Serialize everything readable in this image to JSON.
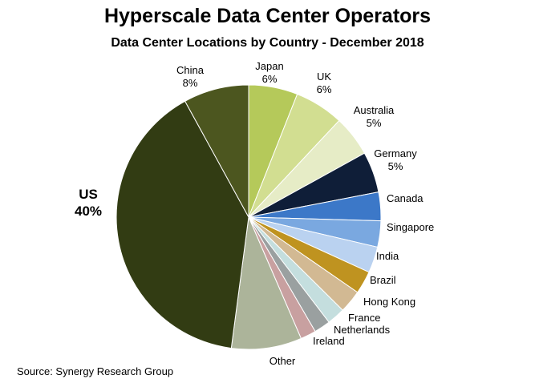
{
  "title": "Hyperscale Data Center Operators",
  "subtitle": "Data Center Locations by Country - December 2018",
  "source": "Source: Synergy Research Group",
  "chart_data": {
    "type": "pie",
    "title": "Hyperscale Data Center Operators",
    "subtitle": "Data Center Locations by Country - December 2018",
    "start_angle_deg": -90,
    "direction": "clockwise",
    "slices": [
      {
        "name": "Japan",
        "value": 6,
        "pct_label": "6%",
        "color": "#b5c95a"
      },
      {
        "name": "UK",
        "value": 6,
        "pct_label": "6%",
        "color": "#d2de91"
      },
      {
        "name": "Australia",
        "value": 5,
        "pct_label": "5%",
        "color": "#e6ecc6"
      },
      {
        "name": "Germany",
        "value": 5,
        "pct_label": "5%",
        "color": "#0f1e38"
      },
      {
        "name": "Canada",
        "value": 3.5,
        "pct_label": "",
        "color": "#3c78c8"
      },
      {
        "name": "Singapore",
        "value": 3.2,
        "pct_label": "",
        "color": "#7aa8e0"
      },
      {
        "name": "India",
        "value": 3.2,
        "pct_label": "",
        "color": "#bad2f0"
      },
      {
        "name": "Brazil",
        "value": 2.8,
        "pct_label": "",
        "color": "#bf9320"
      },
      {
        "name": "Hong Kong",
        "value": 2.8,
        "pct_label": "",
        "color": "#d2b993"
      },
      {
        "name": "France",
        "value": 2.2,
        "pct_label": "",
        "color": "#c4dede"
      },
      {
        "name": "Netherlands",
        "value": 2,
        "pct_label": "",
        "color": "#9aa0a0"
      },
      {
        "name": "Ireland",
        "value": 1.9,
        "pct_label": "",
        "color": "#c8a0a0"
      },
      {
        "name": "Other",
        "value": 8.6,
        "pct_label": "",
        "color": "#acb49a"
      },
      {
        "name": "US",
        "value": 40,
        "pct_label": "40%",
        "color": "#323c13"
      },
      {
        "name": "China",
        "value": 8,
        "pct_label": "8%",
        "color": "#4c561f"
      }
    ]
  }
}
